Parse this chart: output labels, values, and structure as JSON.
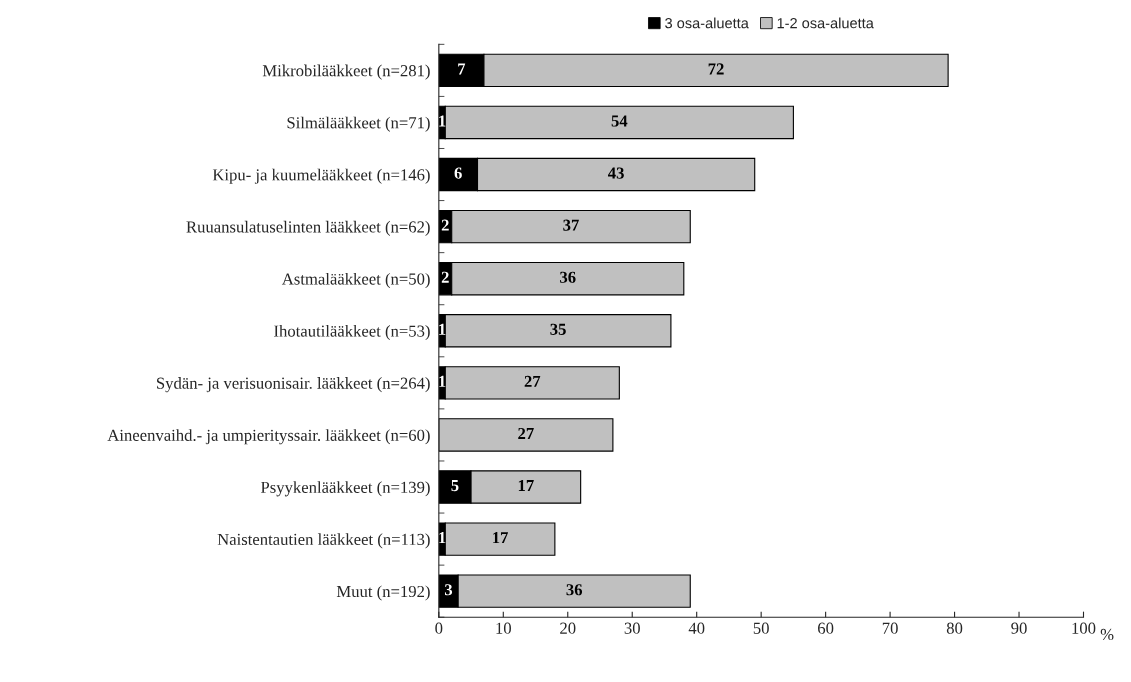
{
  "chart_data": {
    "type": "bar",
    "orientation": "horizontal",
    "stacked": true,
    "categories": [
      "Mikrobilääkkeet (n=281)",
      "Silmälääkkeet (n=71)",
      "Kipu- ja kuumelääkkeet (n=146)",
      "Ruuansulatuselinten lääkkeet (n=62)",
      "Astmalääkkeet (n=50)",
      "Ihotautilääkkeet (n=53)",
      "Sydän- ja verisuonisair. lääkkeet (n=264)",
      "Aineenvaihd.- ja umpierityssair. lääkkeet (n=60)",
      "Psyykenlääkkeet (n=139)",
      "Naistentautien lääkkeet (n=113)",
      "Muut (n=192)"
    ],
    "series": [
      {
        "name": "3 osa-aluetta",
        "color": "#000000",
        "values": [
          7,
          1,
          6,
          2,
          2,
          1,
          1,
          0,
          5,
          1,
          3
        ],
        "value_labels": [
          "7",
          "1",
          "6",
          "2",
          "2",
          "1",
          "1",
          null,
          "5",
          "1",
          "3"
        ]
      },
      {
        "name": "1-2 osa-aluetta",
        "color": "#c0c0c0",
        "values": [
          72,
          54,
          43,
          37,
          36,
          35,
          27,
          27,
          17,
          17,
          36
        ],
        "value_labels": [
          "72",
          "54",
          "43",
          "37",
          "36",
          "35",
          "27",
          "27",
          "17",
          "17",
          "36"
        ]
      }
    ],
    "xlim": [
      0,
      100
    ],
    "xticks": [
      0,
      10,
      20,
      30,
      40,
      50,
      60,
      70,
      80,
      90,
      100
    ],
    "xlabel": "%",
    "legend": "top"
  }
}
